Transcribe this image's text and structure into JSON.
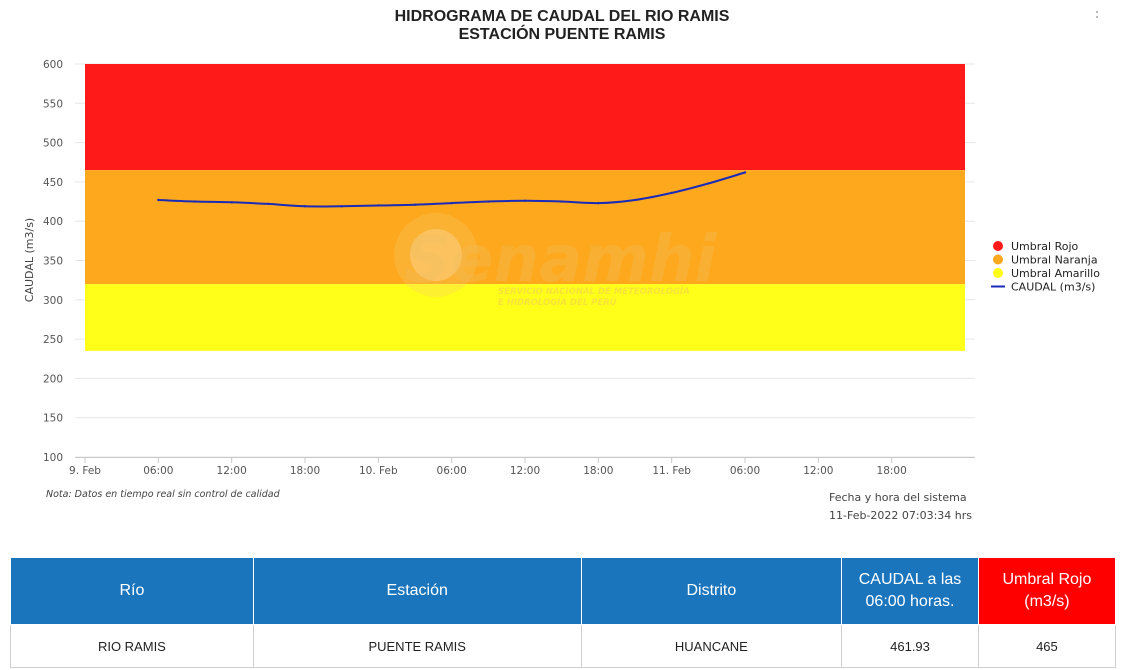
{
  "chart_data": {
    "type": "line",
    "title_lines": [
      "HIDROGRAMA DE CAUDAL DEL RIO RAMIS",
      "ESTACIÓN PUENTE RAMIS"
    ],
    "ylabel": "CAUDAL (m3/s)",
    "ylim": [
      100,
      600
    ],
    "yticks": [
      100,
      150,
      200,
      250,
      300,
      350,
      400,
      450,
      500,
      550,
      600
    ],
    "xlim": [
      "2022-02-09 00:00",
      "2022-02-11 24:00"
    ],
    "xticks": [
      {
        "label": "9. Feb",
        "t": "2022-02-09 00:00"
      },
      {
        "label": "06:00",
        "t": "2022-02-09 06:00"
      },
      {
        "label": "12:00",
        "t": "2022-02-09 12:00"
      },
      {
        "label": "18:00",
        "t": "2022-02-09 18:00"
      },
      {
        "label": "10. Feb",
        "t": "2022-02-10 00:00"
      },
      {
        "label": "06:00",
        "t": "2022-02-10 06:00"
      },
      {
        "label": "12:00",
        "t": "2022-02-10 12:00"
      },
      {
        "label": "18:00",
        "t": "2022-02-10 18:00"
      },
      {
        "label": "11. Feb",
        "t": "2022-02-11 00:00"
      },
      {
        "label": "06:00",
        "t": "2022-02-11 06:00"
      },
      {
        "label": "12:00",
        "t": "2022-02-11 12:00"
      },
      {
        "label": "18:00",
        "t": "2022-02-11 18:00"
      }
    ],
    "bands": [
      {
        "name": "Umbral Rojo",
        "from": 465,
        "to": 600,
        "color": "#ff1a1a"
      },
      {
        "name": "Umbral Naranja",
        "from": 320,
        "to": 465,
        "color": "#fda81d"
      },
      {
        "name": "Umbral Amarillo",
        "from": 235,
        "to": 320,
        "color": "#ffff1a"
      }
    ],
    "band_span": [
      "2022-02-09 00:00",
      "2022-02-11 24:00"
    ],
    "series": [
      {
        "name": "CAUDAL (m3/s)",
        "color": "#1a2bb8",
        "points": [
          [
            "2022-02-09 06:00",
            427
          ],
          [
            "2022-02-09 09:00",
            425
          ],
          [
            "2022-02-09 12:00",
            424
          ],
          [
            "2022-02-09 15:00",
            422
          ],
          [
            "2022-02-09 18:00",
            419
          ],
          [
            "2022-02-09 21:00",
            419
          ],
          [
            "2022-02-10 00:00",
            420
          ],
          [
            "2022-02-10 03:00",
            421
          ],
          [
            "2022-02-10 06:00",
            423
          ],
          [
            "2022-02-10 09:00",
            425
          ],
          [
            "2022-02-10 12:00",
            426
          ],
          [
            "2022-02-10 15:00",
            425
          ],
          [
            "2022-02-10 18:00",
            423
          ],
          [
            "2022-02-10 21:00",
            427
          ],
          [
            "2022-02-11 00:00",
            436
          ],
          [
            "2022-02-11 03:00",
            448
          ],
          [
            "2022-02-11 06:00",
            462
          ]
        ]
      }
    ],
    "legend": {
      "placement": "right",
      "items": [
        {
          "label": "Umbral Rojo",
          "color": "#ff1a1a",
          "symbol": "circle"
        },
        {
          "label": "Umbral Naranja",
          "color": "#fda81d",
          "symbol": "circle"
        },
        {
          "label": "Umbral Amarillo",
          "color": "#ffff1a",
          "symbol": "circle"
        },
        {
          "label": "CAUDAL (m3/s)",
          "color": "#1a2bb8",
          "symbol": "line"
        }
      ]
    },
    "note": "Nota: Datos en tiempo real sin control de calidad",
    "system_time_label": "Fecha y hora del sistema",
    "system_time_value": "11-Feb-2022 07:03:34 hrs",
    "watermark": {
      "brand": "Senamhi",
      "line1": "SERVICIO NACIONAL DE METEOROLOGÍA",
      "line2": "E HIDROLOGÍA DEL PERÚ"
    }
  },
  "table": {
    "headers": [
      "Río",
      "Estación",
      "Distrito",
      "CAUDAL a las 06:00 horas.",
      "Umbral Rojo (m3/s)"
    ],
    "row": [
      "RIO RAMIS",
      "PUENTE RAMIS",
      "HUANCANE",
      "461.93",
      "465"
    ]
  },
  "colors": {
    "header_blue": "#1b75bc",
    "header_red": "#ff0000"
  }
}
